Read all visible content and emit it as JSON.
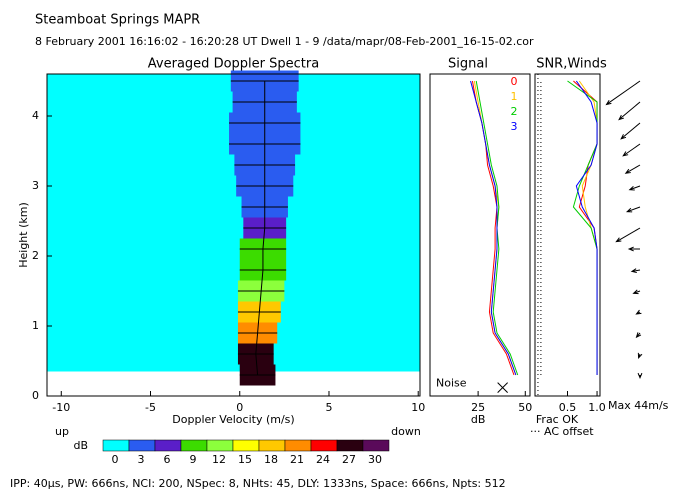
{
  "header": {
    "title": "Steamboat Springs   MAPR",
    "subtitle": "8 February 2001  16:16:02 - 16:20:28 UT   Dwell  1 -  9   /data/mapr/08-Feb-2001_16-15-02.cor"
  },
  "chart_data": [
    {
      "type": "spectra",
      "title": "Averaged Doppler Spectra",
      "xlabel": "Doppler Velocity (m/s)",
      "ylabel": "Height (km)",
      "left_label": "up",
      "right_label": "down",
      "xlim": [
        -10.8,
        10.1
      ],
      "xticks": [
        -10,
        -5,
        0,
        5,
        10
      ],
      "ylim": [
        0,
        4.6
      ],
      "yticks": [
        0,
        1,
        2,
        3,
        4
      ],
      "heights": [
        0.3,
        0.6,
        0.9,
        1.2,
        1.5,
        1.8,
        2.1,
        2.4,
        2.7,
        3.0,
        3.3,
        3.6,
        3.9,
        4.2,
        4.5
      ],
      "mean_velocity": [
        1.0,
        0.9,
        1.0,
        1.1,
        1.2,
        1.3,
        1.3,
        1.4,
        1.4,
        1.4,
        1.4,
        1.4,
        1.4,
        1.4,
        1.4
      ],
      "spectral_width": [
        1.0,
        1.0,
        1.1,
        1.2,
        1.3,
        1.3,
        1.3,
        1.2,
        1.3,
        1.6,
        1.7,
        2.0,
        2.0,
        1.8,
        1.9
      ],
      "peak_db": [
        27,
        27,
        21,
        18,
        12,
        9,
        9,
        6,
        3,
        3,
        3,
        3,
        3,
        3,
        3
      ],
      "colorbar": {
        "label": "dB",
        "levels": [
          0,
          3,
          6,
          9,
          12,
          15,
          18,
          21,
          24,
          27,
          30
        ],
        "colors": [
          "#00ffff",
          "#2a5cf0",
          "#5a1ec8",
          "#3cdc00",
          "#8cff3c",
          "#ffff00",
          "#ffc800",
          "#ff8c00",
          "#ff0000",
          "#2a0010",
          "#5a0a5a"
        ]
      }
    },
    {
      "type": "signal",
      "title": "Signal",
      "xlabel": "dB",
      "xlim": [
        -0.5,
        52.5
      ],
      "xticks": [
        25,
        50
      ],
      "ylim": [
        0,
        4.6
      ],
      "heights": [
        0.3,
        0.6,
        0.9,
        1.2,
        1.5,
        1.8,
        2.1,
        2.4,
        2.7,
        3.0,
        3.3,
        3.6,
        3.9,
        4.2,
        4.5
      ],
      "noise": 38,
      "noise_height": 0.12,
      "noise_label": "Noise",
      "series": [
        {
          "name": "0",
          "color": "#ff0000",
          "values": [
            44,
            40,
            33,
            31,
            32,
            33,
            34,
            34,
            35,
            33,
            30,
            29,
            27,
            24,
            22
          ]
        },
        {
          "name": "1",
          "color": "#ffc000",
          "values": [
            45,
            41,
            34,
            32,
            33,
            34,
            35,
            35,
            36,
            34,
            31,
            29,
            27,
            25,
            23
          ]
        },
        {
          "name": "2",
          "color": "#00cc00",
          "values": [
            46,
            42,
            35,
            33,
            34,
            35,
            36,
            35,
            36,
            35,
            32,
            30,
            28,
            26,
            24
          ]
        },
        {
          "name": "3",
          "color": "#0000ff",
          "values": [
            45,
            41,
            34,
            32,
            33,
            34,
            35,
            35,
            35,
            34,
            31,
            29,
            27,
            24,
            21
          ]
        }
      ]
    },
    {
      "type": "snr",
      "title": "SNR,Winds",
      "xlabel": "Frac OK",
      "note": "··· AC offset",
      "xlim": [
        -0.05,
        1.05
      ],
      "xticks": [
        0.5,
        {
          "value": 1,
          "label": "1.0"
        }
      ],
      "ylim": [
        0,
        4.6
      ],
      "heights": [
        0.3,
        0.6,
        0.9,
        1.2,
        1.5,
        1.8,
        2.1,
        2.4,
        2.7,
        3.0,
        3.3,
        3.6,
        3.9,
        4.2,
        4.5
      ],
      "ac_offset": [
        0.05,
        0.05,
        0.05,
        0.05,
        0.05,
        0.05,
        0.05,
        0.05,
        0.05,
        0.05,
        0.05,
        0.05,
        0.05,
        0.05,
        0.05
      ],
      "series": [
        {
          "color": "#ff0000",
          "values": [
            1,
            1,
            1,
            1,
            1,
            1,
            1,
            0.95,
            0.7,
            0.8,
            0.85,
            1,
            1,
            1,
            0.6
          ]
        },
        {
          "color": "#ffc000",
          "values": [
            1,
            1,
            1,
            1,
            1,
            1,
            1,
            0.9,
            0.8,
            0.75,
            0.9,
            1,
            1,
            0.95,
            0.7
          ]
        },
        {
          "color": "#00cc00",
          "values": [
            1,
            1,
            1,
            1,
            1,
            1,
            1,
            0.9,
            0.6,
            0.7,
            0.85,
            1,
            1,
            1,
            0.5
          ]
        },
        {
          "color": "#0000ff",
          "values": [
            1,
            1,
            1,
            1,
            1,
            1,
            1,
            0.95,
            0.75,
            0.65,
            0.9,
            1,
            1,
            0.9,
            0.65
          ]
        }
      ]
    },
    {
      "type": "winds",
      "label": "Max 44m/s",
      "max_speed": 44,
      "ylim": [
        0,
        4.6
      ],
      "heights": [
        0.3,
        0.6,
        0.9,
        1.2,
        1.5,
        1.8,
        2.1,
        2.4,
        2.7,
        3.0,
        3.3,
        3.6,
        3.9,
        4.2,
        4.5
      ],
      "speed": [
        2,
        3,
        4,
        3,
        5,
        6,
        8,
        20,
        10,
        8,
        12,
        15,
        18,
        20,
        30
      ],
      "direction": [
        180,
        200,
        220,
        240,
        250,
        260,
        270,
        240,
        250,
        250,
        240,
        235,
        230,
        230,
        235
      ]
    }
  ],
  "footer": "IPP: 40μs, PW: 666ns, NCI: 200, NSpec: 8, NHts: 45, DLY: 1333ns, Space: 666ns, Npts: 512"
}
